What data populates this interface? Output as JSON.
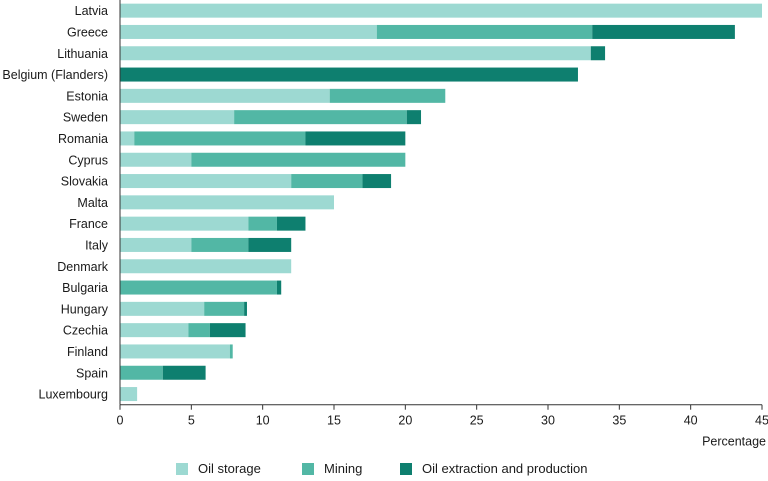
{
  "chart_data": {
    "type": "bar",
    "orientation": "horizontal",
    "stacked": true,
    "title": "",
    "xlabel": "Percentage",
    "ylabel": "",
    "xlim": [
      0,
      45
    ],
    "xticks": [
      0,
      5,
      10,
      15,
      20,
      25,
      30,
      35,
      40,
      45
    ],
    "grid": false,
    "legend_position": "bottom",
    "categories": [
      "Latvia",
      "Greece",
      "Lithuania",
      "Belgium (Flanders)",
      "Estonia",
      "Sweden",
      "Romania",
      "Cyprus",
      "Slovakia",
      "Malta",
      "France",
      "Italy",
      "Denmark",
      "Bulgaria",
      "Hungary",
      "Czechia",
      "Finland",
      "Spain",
      "Luxembourg"
    ],
    "series": [
      {
        "name": "Oil storage",
        "color": "#9dd9d2",
        "values": [
          45,
          18,
          33,
          0,
          14.7,
          8,
          1,
          5,
          12,
          15,
          9,
          5,
          12,
          0,
          5.9,
          4.8,
          7.7,
          0,
          1.2
        ]
      },
      {
        "name": "Mining",
        "color": "#52b7a5",
        "values": [
          0,
          15.1,
          0,
          0,
          8.1,
          12.1,
          12,
          15,
          5,
          0,
          2,
          4,
          0,
          11,
          2.8,
          1.5,
          0.2,
          3,
          0
        ]
      },
      {
        "name": "Oil extraction and production",
        "color": "#0e7f6f",
        "values": [
          0,
          10,
          1,
          32.1,
          0,
          1,
          7,
          0,
          2,
          0,
          2,
          3,
          0,
          0.3,
          0.2,
          2.5,
          0,
          3,
          0
        ]
      }
    ]
  }
}
